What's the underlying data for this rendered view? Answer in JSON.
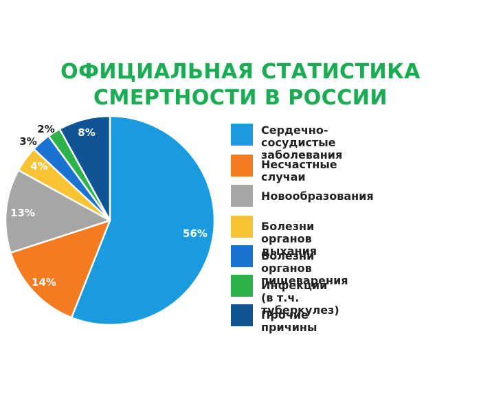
{
  "title": {
    "line1": "ОФИЦИАЛЬНАЯ СТАТИСТИКА",
    "line2": "СМЕРТНОСТИ В РОССИИ",
    "color": "#1daa55"
  },
  "legend": {
    "items": [
      {
        "label": "Сердечно-сосудистые\nзаболевания",
        "color": "#1a9be0"
      },
      {
        "label": "Несчастные случаи",
        "color": "#f47b20"
      },
      {
        "label": "Новообразования",
        "color": "#a6a6a6"
      },
      {
        "label": "Болезни органов дыхания",
        "color": "#f7c332"
      },
      {
        "label": "Болезни органов пищеварения",
        "color": "#1a73d1"
      },
      {
        "label": "Инфекции (в т.ч. туберкулез)",
        "color": "#2db34a"
      },
      {
        "label": "Прочие причины",
        "color": "#0f5595"
      }
    ]
  },
  "chart_data": {
    "type": "pie",
    "title": "ОФИЦИАЛЬНАЯ СТАТИСТИКА СМЕРТНОСТИ В РОССИИ",
    "categories": [
      "Сердечно-сосудистые заболевания",
      "Несчастные случаи",
      "Новообразования",
      "Болезни органов дыхания",
      "Болезни органов пищеварения",
      "Инфекции (в т.ч. туберкулез)",
      "Прочие причины"
    ],
    "values": [
      56,
      14,
      13,
      4,
      3,
      2,
      8
    ],
    "labels": [
      "56%",
      "14%",
      "13%",
      "4%",
      "3%",
      "2%",
      "8%"
    ],
    "colors": [
      "#1a9be0",
      "#f47b20",
      "#a6a6a6",
      "#f7c332",
      "#1a73d1",
      "#2db34a",
      "#0f5595"
    ],
    "label_colors": [
      "#ffffff",
      "#ffffff",
      "#ffffff",
      "#ffffff",
      "#222222",
      "#222222",
      "#ffffff"
    ],
    "start_angle": "12 o'clock",
    "direction": "clockwise",
    "legend_position": "right",
    "units": "%"
  }
}
